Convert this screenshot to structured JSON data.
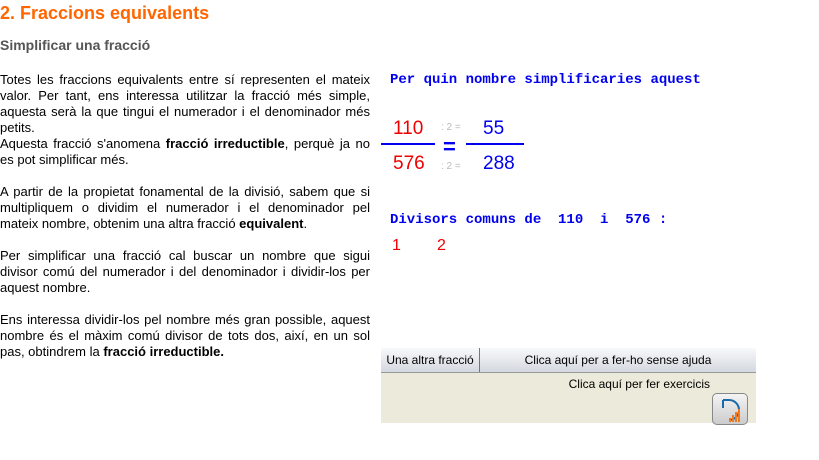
{
  "title": "2. Fraccions equivalents",
  "subtitle": "Simplificar una fracció",
  "paragraphs": [
    {
      "pre": "Totes les fraccions equivalents entre sí representen el mateix valor. Per tant, ens interessa utilitzar la fracció més simple, aquesta serà la que tingui el numerador i el denominador més petits.",
      "br": "Aquesta fracció s'anomena ",
      "bold": "fracció irreductible",
      "post": ", perquè ja no es pot simplificar més."
    },
    {
      "pre": "A partir de la propietat fonamental de la divisió, sabem que si multipliquem o dividim el numerador i el denominador pel mateix nombre, obtenim una altra fracció ",
      "bold": "equivalent",
      "post": "."
    },
    {
      "pre": "Per simplificar una fracció cal buscar un nombre que sigui divisor comú del numerador i del denominador i dividir-los per aquest nombre."
    },
    {
      "pre": "Ens interessa dividir-los pel nombre més gran possible, aquest nombre és el màxim comú divisor de tots dos, així, en un sol pas, obtindrem la ",
      "bold": "fracció irreductible."
    }
  ],
  "question": "Per quin nombre simplificaries aquest",
  "fraction": {
    "num": "110",
    "den": "576",
    "op_num": ": 2 =",
    "op_den": ": 2 =",
    "eq": "=",
    "res_num": "55",
    "res_den": "288"
  },
  "divisors_label": "Divisors comuns de  110  i  576 :",
  "divisors": [
    "1",
    "2"
  ],
  "tabs": [
    "Una altra fracció",
    "Clica aquí per a fer-ho sense ajuda"
  ],
  "exercise_link": "Clica aquí per fer exercicis",
  "colors": {
    "title": "#ff6600",
    "numbers_red": "#ee0000",
    "numbers_blue": "#0000ee"
  }
}
